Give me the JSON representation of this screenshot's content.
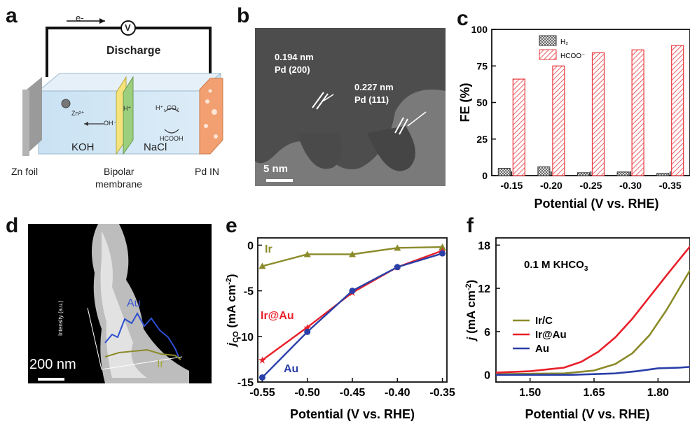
{
  "panels": {
    "a": {
      "letter": "a",
      "electron": "e-",
      "volt": "V",
      "discharge": "Discharge",
      "zn_ion": "Zn²⁺",
      "oh": "OH⁻",
      "h_plus": "H⁺",
      "h_co2": "H⁺, CO₂",
      "hcooh": "HCOOH",
      "koh": "KOH",
      "nacl": "NaCl",
      "zn_foil": "Zn foil",
      "bipolar1": "Bipolar",
      "bipolar2": "membrane",
      "pd_in": "Pd IN"
    },
    "b": {
      "letter": "b",
      "d1": "0.194 nm",
      "plane1": "Pd (200)",
      "d2": "0.227 nm",
      "plane2": "Pd (111)",
      "scale": "5 nm"
    },
    "d": {
      "letter": "d",
      "au": "Au",
      "ir": "Ir",
      "intensity": "Intensity (a.u.)",
      "scale": "200 nm"
    }
  },
  "colors": {
    "ir": "#8b8b2a",
    "iratau": "#e8202a",
    "au": "#2a3fa8",
    "hcoo": "#e8383d",
    "h2": "#555555"
  },
  "chart_data": [
    {
      "id": "c",
      "letter": "c",
      "type": "bar",
      "categories": [
        "-0.15",
        "-0.20",
        "-0.25",
        "-0.30",
        "-0.35"
      ],
      "series": [
        {
          "name": "H₂",
          "values": [
            5,
            6,
            2,
            2.5,
            1.5
          ]
        },
        {
          "name": "HCOO⁻",
          "values": [
            66,
            75,
            84,
            86,
            89
          ]
        }
      ],
      "xlabel": "Potential (V vs. RHE)",
      "ylabel": "FE (%)",
      "ylim": [
        0,
        100
      ],
      "yticks": [
        "0",
        "25",
        "50",
        "75",
        "100"
      ]
    },
    {
      "id": "e",
      "letter": "e",
      "type": "line",
      "x": [
        -0.55,
        -0.5,
        -0.45,
        -0.4,
        -0.35
      ],
      "series": [
        {
          "name": "Ir",
          "values": [
            -2.3,
            -1.0,
            -1.0,
            -0.3,
            -0.2
          ]
        },
        {
          "name": "Ir@Au",
          "values": [
            -12.6,
            -9.0,
            -5.2,
            -2.4,
            -0.6
          ]
        },
        {
          "name": "Au",
          "values": [
            -14.5,
            -9.5,
            -5.0,
            -2.4,
            -0.9
          ]
        }
      ],
      "xlabel": "Potential (V vs. RHE)",
      "ylabel_main": "j",
      "ylabel_sub": "CO",
      "ylabel_rest": " (mA cm",
      "ylabel_sup": "-2",
      "ylabel_end": ")",
      "xlim": [
        -0.555,
        -0.345
      ],
      "ylim": [
        -15,
        0.8
      ],
      "xticks": [
        "-0.55",
        "-0.50",
        "-0.45",
        "-0.40",
        "-0.35"
      ],
      "yticks": [
        "-15",
        "-10",
        "-5",
        "0"
      ]
    },
    {
      "id": "f",
      "letter": "f",
      "type": "line",
      "series": [
        {
          "name": "Ir/C",
          "x": [
            1.42,
            1.5,
            1.58,
            1.65,
            1.7,
            1.74,
            1.78,
            1.82,
            1.85,
            1.875
          ],
          "values": [
            0.1,
            0.15,
            0.2,
            0.6,
            1.5,
            3.0,
            5.5,
            9.0,
            12.0,
            14.5
          ]
        },
        {
          "name": "Ir@Au",
          "x": [
            1.42,
            1.5,
            1.58,
            1.62,
            1.66,
            1.7,
            1.74,
            1.78,
            1.82,
            1.85,
            1.875
          ],
          "values": [
            0.3,
            0.5,
            1.0,
            1.8,
            3.2,
            5.2,
            7.8,
            10.8,
            13.8,
            16.0,
            17.8
          ]
        },
        {
          "name": "Au",
          "x": [
            1.42,
            1.6,
            1.7,
            1.75,
            1.8,
            1.85,
            1.875
          ],
          "values": [
            0.0,
            0.0,
            0.2,
            0.5,
            0.9,
            1.0,
            1.1
          ]
        }
      ],
      "annotation": "0.1 M KHCO",
      "annotation_sub": "3",
      "xlabel": "Potential (V vs. RHE)",
      "ylabel_main": "j",
      "ylabel_rest": " (mA cm",
      "ylabel_sup": "-2",
      "ylabel_end": ")",
      "xlim": [
        1.42,
        1.875
      ],
      "ylim": [
        -1,
        19
      ],
      "xticks": [
        "1.50",
        "1.65",
        "1.80"
      ],
      "yticks": [
        "0",
        "6",
        "12",
        "18"
      ]
    }
  ]
}
